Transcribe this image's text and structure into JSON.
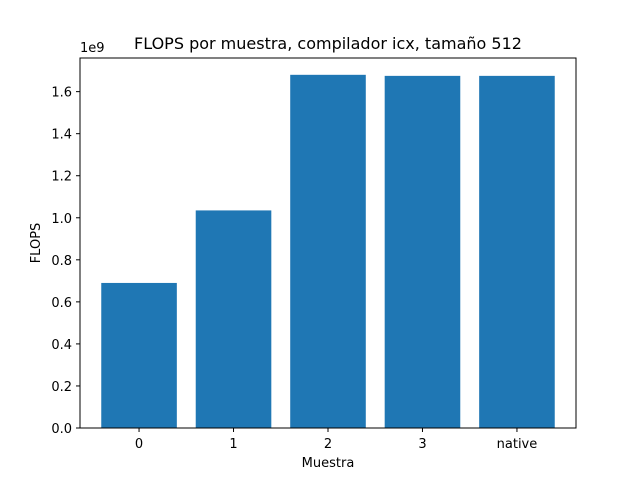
{
  "chart_data": {
    "type": "bar",
    "title": "FLOPS por muestra, compilador icx, tamaño 512",
    "xlabel": "Muestra",
    "ylabel": "FLOPS",
    "y_offset_label": "1e9",
    "categories": [
      "0",
      "1",
      "2",
      "3",
      "native"
    ],
    "values": [
      690000000,
      1035000000,
      1680000000,
      1675000000,
      1675000000
    ],
    "ylim": [
      0,
      1760000000
    ],
    "yticks": [
      0,
      200000000,
      400000000,
      600000000,
      800000000,
      1000000000,
      1200000000,
      1400000000,
      1600000000
    ],
    "ytick_labels": [
      "0.0",
      "0.2",
      "0.4",
      "0.6",
      "0.8",
      "1.0",
      "1.2",
      "1.4",
      "1.6"
    ],
    "bar_color": "#1f77b4",
    "grid": false,
    "legend": false
  }
}
